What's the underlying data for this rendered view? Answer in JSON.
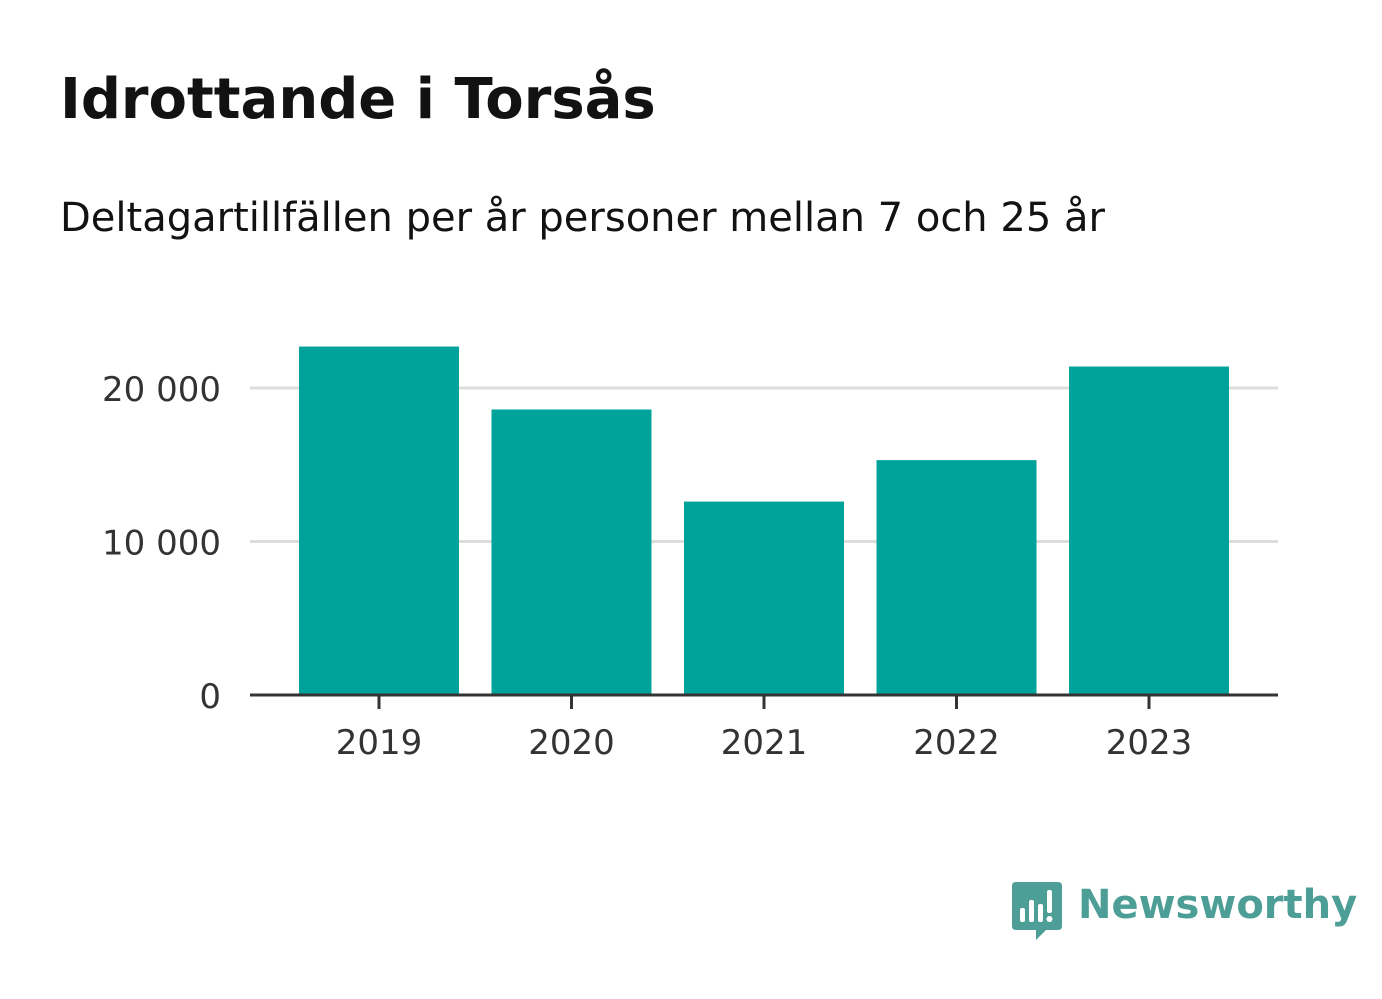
{
  "header": {
    "title": "Idrottande i Torsås",
    "subtitle": "Deltagartillfällen per år personer mellan 7 och 25 år"
  },
  "brand": {
    "name": "Newsworthy",
    "icon": "newsworthy-logo-icon",
    "color": "#4c9e97"
  },
  "colors": {
    "bar": "#00a39a",
    "grid": "#dddddd",
    "axis": "#333333",
    "tick_text": "#333333"
  },
  "chart_data": {
    "type": "bar",
    "categories": [
      "2019",
      "2020",
      "2021",
      "2022",
      "2023"
    ],
    "values": [
      22700,
      18600,
      12600,
      15300,
      21400
    ],
    "yticks": [
      0,
      10000,
      20000
    ],
    "ytick_labels": [
      "0",
      "10 000",
      "20 000"
    ],
    "ylim": [
      0,
      24000
    ],
    "grid": true,
    "xlabel": "",
    "ylabel": ""
  }
}
